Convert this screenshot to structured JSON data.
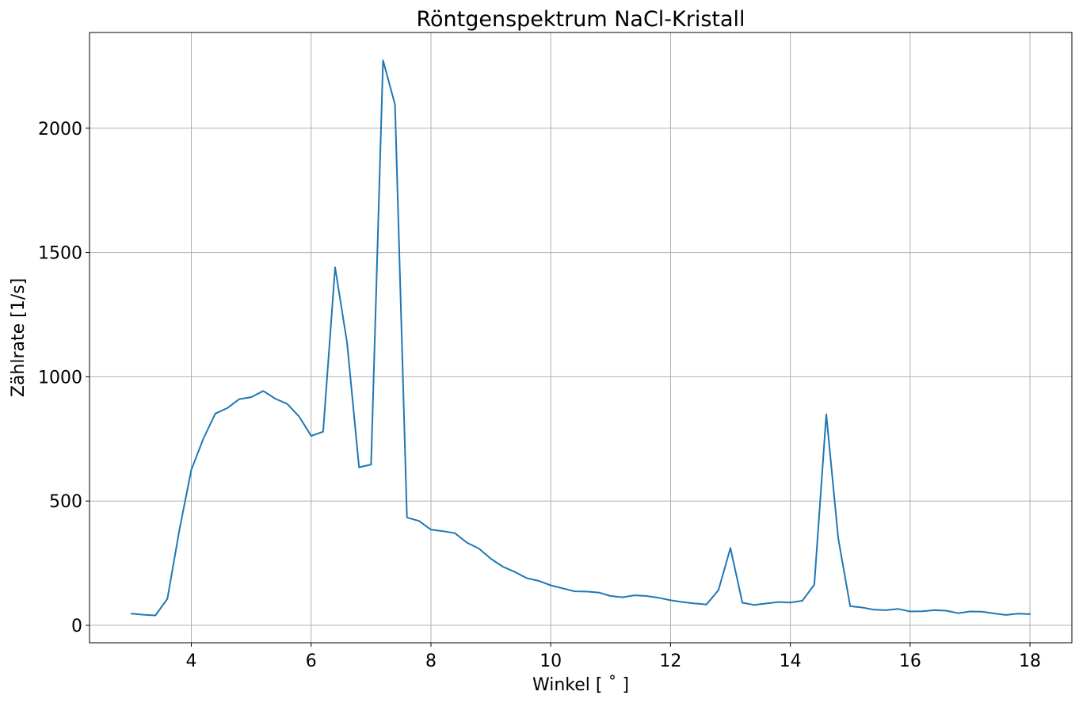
{
  "chart_data": {
    "type": "line",
    "title": "Röntgenspektrum NaCl-Kristall",
    "xlabel": "Winkel [$^\\circ$]",
    "xlabel_display": "Winkel [ ˚ ]",
    "ylabel": "Zählrate [1/s]",
    "xlim": [
      2.3,
      18.7
    ],
    "ylim": [
      -70,
      2385
    ],
    "xticks": [
      4,
      6,
      8,
      10,
      12,
      14,
      16,
      18
    ],
    "yticks": [
      0,
      500,
      1000,
      1500,
      2000
    ],
    "grid": true,
    "legend": "none",
    "series": [
      {
        "color": "#1f77b4",
        "x": [
          3.0,
          3.2,
          3.4,
          3.6,
          3.8,
          4.0,
          4.2,
          4.4,
          4.6,
          4.8,
          5.0,
          5.2,
          5.4,
          5.6,
          5.8,
          6.0,
          6.2,
          6.4,
          6.6,
          6.8,
          7.0,
          7.2,
          7.4,
          7.6,
          7.8,
          8.0,
          8.2,
          8.4,
          8.6,
          8.8,
          9.0,
          9.2,
          9.4,
          9.6,
          9.8,
          10.0,
          10.2,
          10.4,
          10.6,
          10.8,
          11.0,
          11.2,
          11.4,
          11.6,
          11.8,
          12.0,
          12.2,
          12.4,
          12.6,
          12.8,
          13.0,
          13.2,
          13.4,
          13.6,
          13.8,
          14.0,
          14.2,
          14.4,
          14.6,
          14.8,
          15.0,
          15.2,
          15.4,
          15.6,
          15.8,
          16.0,
          16.2,
          16.4,
          16.6,
          16.8,
          17.0,
          17.2,
          17.4,
          17.6,
          17.8,
          18.0
        ],
        "values": [
          47,
          43,
          40,
          107,
          383,
          626,
          751,
          852,
          874,
          910,
          918,
          943,
          912,
          891,
          840,
          762,
          779,
          1440,
          1137,
          636,
          647,
          2273,
          2095,
          434,
          420,
          385,
          379,
          371,
          333,
          309,
          268,
          236,
          215,
          190,
          179,
          161,
          149,
          137,
          136,
          132,
          118,
          113,
          121,
          118,
          111,
          101,
          94,
          88,
          84,
          142,
          311,
          91,
          82,
          88,
          94,
          92,
          99,
          164,
          849,
          350,
          77,
          72,
          63,
          61,
          66,
          56,
          57,
          61,
          59,
          49,
          56,
          55,
          48,
          42,
          47,
          45
        ]
      }
    ]
  }
}
